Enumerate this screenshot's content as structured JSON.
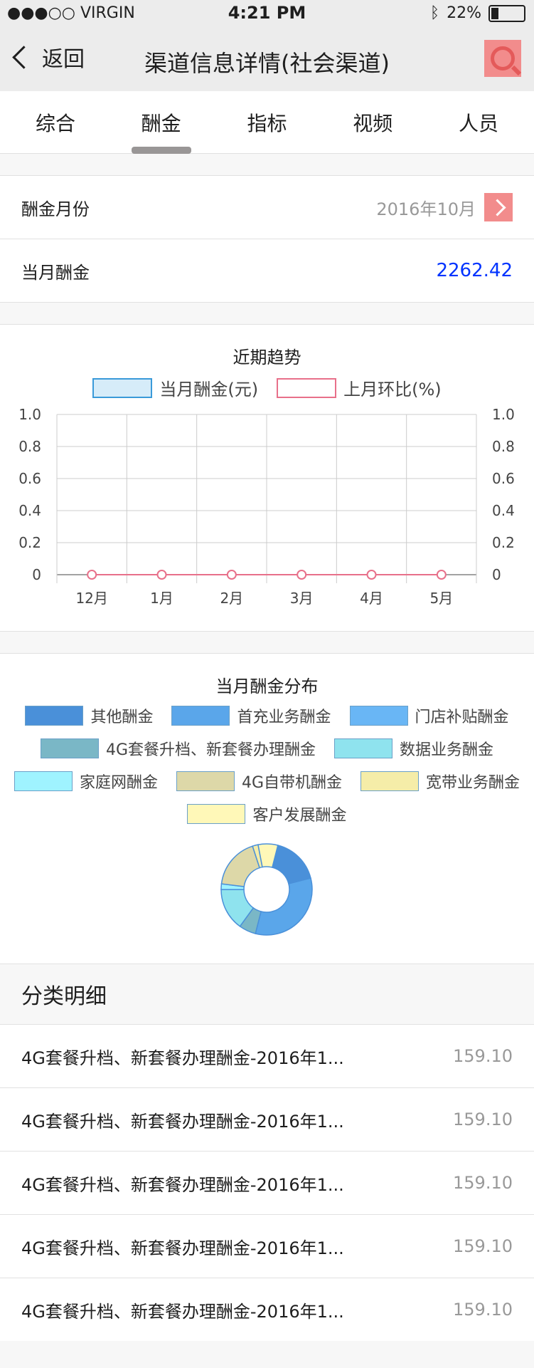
{
  "status": {
    "carrier": "●●●○○ VIRGIN",
    "time": "4:21 PM",
    "battery": "22%"
  },
  "nav": {
    "back_label": "返回",
    "title": "渠道信息详情(社会渠道)"
  },
  "tabs": [
    "综合",
    "酬金",
    "指标",
    "视频",
    "人员"
  ],
  "rows": [
    {
      "label": "酬金月份",
      "value": "2016年10月"
    },
    {
      "label": "当月酬金",
      "value": "2262.42"
    }
  ],
  "trend": {
    "title": "近期趋势",
    "legend": [
      "当月酬金(元)",
      "上月环比(%)"
    ],
    "y_ticks": [
      "1.0",
      "0.8",
      "0.6",
      "0.4",
      "0.2",
      "0"
    ],
    "months": [
      "12月",
      "1月",
      "2月",
      "3月",
      "4月",
      "5月"
    ]
  },
  "distribution": {
    "title": "当月酬金分布",
    "legend": [
      {
        "name": "其他酬金",
        "color": "#4a90d9"
      },
      {
        "name": "首充业务酬金",
        "color": "#5aa6ea"
      },
      {
        "name": "门店补贴酬金",
        "color": "#69b6f5"
      },
      {
        "name": "4G套餐升档、新套餐办理酬金",
        "color": "#7ab7c6"
      },
      {
        "name": "数据业务酬金",
        "color": "#8fe3ee"
      },
      {
        "name": "家庭网酬金",
        "color": "#9ff3ff"
      },
      {
        "name": "4G自带机酬金",
        "color": "#ddd8a8"
      },
      {
        "name": "宽带业务酬金",
        "color": "#f5eda8"
      },
      {
        "name": "客户发展酬金",
        "color": "#fff8b8"
      }
    ]
  },
  "detail": {
    "title": "分类明细"
  },
  "list": [
    {
      "label": "4G套餐升档、新套餐办理酬金-2016年1...",
      "value": "159.10"
    },
    {
      "label": "4G套餐升档、新套餐办理酬金-2016年1...",
      "value": "159.10"
    },
    {
      "label": "4G套餐升档、新套餐办理酬金-2016年1...",
      "value": "159.10"
    },
    {
      "label": "4G套餐升档、新套餐办理酬金-2016年1...",
      "value": "159.10"
    },
    {
      "label": "4G套餐升档、新套餐办理酬金-2016年1...",
      "value": "159.10"
    }
  ],
  "chart_data": {
    "type": "line",
    "x": [
      "12月",
      "1月",
      "2月",
      "3月",
      "4月",
      "5月"
    ],
    "series": [
      {
        "name": "当月酬金(元)",
        "values": [
          0,
          0,
          0,
          0,
          0,
          0
        ]
      },
      {
        "name": "上月环比(%)",
        "values": [
          0,
          0,
          0,
          0,
          0,
          0
        ]
      }
    ],
    "ylim": [
      0,
      1.0
    ],
    "y2lim": [
      0,
      1.0
    ],
    "title": "近期趋势",
    "grid": true,
    "legend": "top-center"
  }
}
